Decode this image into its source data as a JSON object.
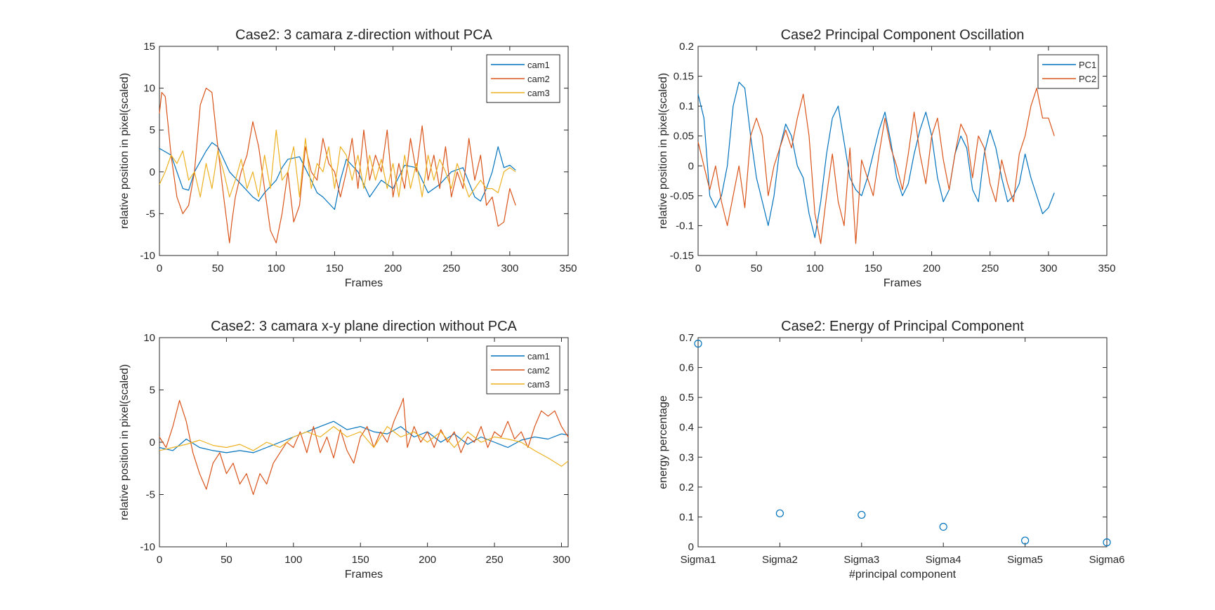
{
  "chart_data": [
    {
      "type": "line",
      "title": "Case2: 3 camara z-direction without PCA",
      "xlabel": "Frames",
      "ylabel": "relative position in pixel(scaled)",
      "xlim": [
        0,
        350
      ],
      "ylim": [
        -10,
        15
      ],
      "xticks": [
        0,
        50,
        100,
        150,
        200,
        250,
        300,
        350
      ],
      "yticks": [
        -10,
        -5,
        0,
        5,
        10,
        15
      ],
      "xtick_labels": [
        "0",
        "50",
        "100",
        "150",
        "200",
        "250",
        "300",
        "350"
      ],
      "ytick_labels": [
        "-10",
        "-5",
        "0",
        "5",
        "10",
        "15"
      ],
      "legend_position": "top-right",
      "series": [
        {
          "name": "cam1",
          "color": "#0072BD",
          "x": [
            0,
            10,
            20,
            25,
            30,
            40,
            45,
            50,
            60,
            70,
            80,
            85,
            90,
            100,
            105,
            110,
            120,
            130,
            135,
            140,
            150,
            155,
            160,
            170,
            180,
            190,
            200,
            210,
            220,
            230,
            240,
            250,
            260,
            270,
            275,
            280,
            285,
            290,
            295,
            300,
            305
          ],
          "y": [
            2.8,
            2,
            -2,
            -2.2,
            0,
            2.5,
            3.5,
            3,
            0,
            -1.5,
            -3,
            -3.5,
            -2.5,
            -1,
            0.5,
            1.5,
            1.8,
            -1,
            -2.5,
            -3,
            -4.5,
            -1,
            1.5,
            0,
            -3,
            -1,
            -2,
            0.8,
            0.5,
            -2.5,
            -1.5,
            0,
            0.5,
            -3,
            -3.5,
            -2,
            0,
            3,
            0.5,
            0.8,
            0.2
          ]
        },
        {
          "name": "cam2",
          "color": "#D95319",
          "x": [
            0,
            2,
            5,
            10,
            15,
            20,
            25,
            30,
            35,
            40,
            45,
            50,
            55,
            60,
            62,
            65,
            70,
            75,
            80,
            85,
            90,
            95,
            100,
            105,
            110,
            115,
            120,
            125,
            130,
            135,
            140,
            145,
            150,
            155,
            160,
            165,
            170,
            175,
            180,
            185,
            190,
            195,
            200,
            205,
            210,
            215,
            220,
            225,
            230,
            235,
            240,
            245,
            250,
            255,
            260,
            265,
            270,
            275,
            280,
            285,
            290,
            295,
            300,
            305
          ],
          "y": [
            7,
            9.5,
            9,
            2,
            -3,
            -5,
            -4,
            0,
            8,
            10,
            9.5,
            3,
            -3,
            -8.5,
            -6,
            -3,
            0,
            2,
            6,
            3,
            -2,
            -7,
            -8.5,
            -5,
            0,
            -6,
            -4,
            3,
            0,
            -1,
            4,
            1,
            0,
            -3,
            0,
            4,
            -2,
            5,
            -1,
            2,
            0,
            5,
            -3,
            1,
            -2,
            4,
            0,
            5.5,
            -1,
            2,
            -2,
            3,
            -3,
            0,
            -2,
            4,
            -1,
            2,
            -4,
            -3,
            -6.5,
            -6,
            -2,
            -4
          ]
        },
        {
          "name": "cam3",
          "color": "#EDB120",
          "x": [
            0,
            5,
            10,
            15,
            20,
            25,
            30,
            35,
            40,
            45,
            50,
            55,
            60,
            65,
            70,
            75,
            80,
            85,
            90,
            95,
            100,
            105,
            110,
            115,
            120,
            125,
            130,
            135,
            140,
            145,
            150,
            155,
            160,
            165,
            170,
            175,
            180,
            185,
            190,
            195,
            200,
            205,
            210,
            215,
            220,
            225,
            230,
            235,
            240,
            245,
            250,
            255,
            260,
            265,
            270,
            275,
            280,
            285,
            290,
            295,
            300,
            305
          ],
          "y": [
            -1.5,
            0,
            2,
            1,
            2.5,
            -1,
            0,
            -3,
            1,
            -2,
            2.5,
            0,
            -3,
            -1,
            1.5,
            -2,
            0,
            -3,
            2,
            -2,
            5,
            -1,
            0,
            3,
            -3,
            4,
            -2,
            1,
            0,
            3,
            -2,
            3,
            2,
            -1,
            2,
            -2,
            2,
            -1,
            1.5,
            -2,
            1,
            -3,
            2,
            -2,
            1,
            -3,
            2,
            -1,
            1.5,
            0,
            -2,
            1,
            -1,
            -3,
            -2,
            -1,
            -2,
            -2,
            -2.5,
            0,
            0.5,
            0
          ]
        }
      ]
    },
    {
      "type": "line",
      "title": "Case2 Principal Component Oscillation",
      "xlabel": "Frames",
      "ylabel": "relative position in pixel(scaled)",
      "xlim": [
        0,
        350
      ],
      "ylim": [
        -0.15,
        0.2
      ],
      "xticks": [
        0,
        50,
        100,
        150,
        200,
        250,
        300,
        350
      ],
      "yticks": [
        -0.15,
        -0.1,
        -0.05,
        0,
        0.05,
        0.1,
        0.15,
        0.2
      ],
      "xtick_labels": [
        "0",
        "50",
        "100",
        "150",
        "200",
        "250",
        "300",
        "350"
      ],
      "ytick_labels": [
        "-0.15",
        "-0.1",
        "-0.05",
        "0",
        "0.05",
        "0.1",
        "0.15",
        "0.2"
      ],
      "legend_position": "top-right",
      "series": [
        {
          "name": "PC1",
          "color": "#0072BD",
          "x": [
            0,
            5,
            10,
            15,
            20,
            25,
            30,
            35,
            40,
            45,
            50,
            55,
            60,
            65,
            70,
            75,
            80,
            85,
            90,
            95,
            100,
            105,
            110,
            115,
            120,
            125,
            130,
            135,
            140,
            145,
            150,
            155,
            160,
            165,
            170,
            175,
            180,
            185,
            190,
            195,
            200,
            205,
            210,
            215,
            220,
            225,
            230,
            235,
            240,
            245,
            250,
            255,
            260,
            265,
            270,
            275,
            280,
            285,
            290,
            295,
            300,
            305
          ],
          "y": [
            0.12,
            0.08,
            -0.05,
            -0.07,
            -0.05,
            0,
            0.1,
            0.14,
            0.13,
            0.05,
            -0.02,
            -0.06,
            -0.1,
            -0.05,
            0.03,
            0.07,
            0.05,
            0,
            -0.02,
            -0.08,
            -0.12,
            -0.06,
            0.02,
            0.08,
            0.1,
            0.04,
            -0.02,
            -0.04,
            -0.05,
            -0.02,
            0.02,
            0.06,
            0.09,
            0.04,
            -0.02,
            -0.05,
            -0.03,
            0.02,
            0.06,
            0.09,
            0.05,
            -0.02,
            -0.06,
            -0.04,
            0.02,
            0.05,
            0.03,
            -0.04,
            -0.06,
            0.02,
            0.06,
            0.03,
            -0.02,
            -0.06,
            -0.05,
            -0.03,
            0.02,
            -0.02,
            -0.05,
            -0.08,
            -0.07,
            -0.045
          ]
        },
        {
          "name": "PC2",
          "color": "#D95319",
          "x": [
            0,
            5,
            10,
            15,
            20,
            25,
            30,
            35,
            40,
            45,
            50,
            55,
            60,
            65,
            70,
            75,
            80,
            85,
            90,
            95,
            100,
            105,
            110,
            115,
            120,
            125,
            130,
            135,
            140,
            145,
            150,
            155,
            160,
            165,
            170,
            175,
            180,
            185,
            190,
            195,
            200,
            205,
            210,
            215,
            220,
            225,
            230,
            235,
            240,
            245,
            250,
            255,
            260,
            265,
            270,
            275,
            280,
            285,
            290,
            295,
            300,
            305
          ],
          "y": [
            0.04,
            0,
            -0.04,
            0,
            -0.06,
            -0.1,
            -0.05,
            0,
            -0.07,
            0.05,
            0.08,
            0.05,
            -0.05,
            0,
            0.03,
            0.06,
            0.03,
            0.08,
            0.12,
            0.05,
            -0.08,
            -0.13,
            -0.05,
            0.02,
            -0.06,
            -0.1,
            0.03,
            -0.13,
            0.01,
            -0.02,
            -0.05,
            0.02,
            0.08,
            0.03,
            0,
            -0.04,
            0.02,
            0.09,
            0.02,
            -0.03,
            0.05,
            0.08,
            0.01,
            -0.04,
            0.02,
            0.07,
            0.05,
            -0.02,
            0.05,
            0.03,
            -0.03,
            -0.06,
            0.01,
            -0.03,
            -0.06,
            0.02,
            0.05,
            0.1,
            0.13,
            0.08,
            0.08,
            0.05
          ]
        }
      ]
    },
    {
      "type": "line",
      "title": "Case2: 3 camara x-y plane direction without PCA",
      "xlabel": "Frames",
      "ylabel": "relative position in pixel(scaled)",
      "xlim": [
        0,
        305
      ],
      "ylim": [
        -10,
        10
      ],
      "xticks": [
        0,
        50,
        100,
        150,
        200,
        250,
        300
      ],
      "yticks": [
        -10,
        -5,
        0,
        5,
        10
      ],
      "xtick_labels": [
        "0",
        "50",
        "100",
        "150",
        "200",
        "250",
        "300"
      ],
      "ytick_labels": [
        "-10",
        "-5",
        "0",
        "5",
        "10"
      ],
      "legend_position": "top-right",
      "series": [
        {
          "name": "cam1",
          "color": "#0072BD",
          "x": [
            0,
            10,
            20,
            30,
            40,
            50,
            60,
            70,
            80,
            90,
            100,
            110,
            120,
            130,
            140,
            150,
            160,
            170,
            180,
            190,
            200,
            210,
            220,
            230,
            240,
            250,
            260,
            270,
            280,
            290,
            300,
            305
          ],
          "y": [
            -0.5,
            -0.8,
            0.3,
            -0.5,
            -0.8,
            -1,
            -0.8,
            -1,
            -0.5,
            0,
            0.5,
            1,
            1.5,
            2,
            1.2,
            1.5,
            1,
            0.8,
            1.5,
            0.5,
            1,
            0,
            0.8,
            -0.2,
            0.5,
            0,
            -0.5,
            0.2,
            0.5,
            0.3,
            0.8,
            0.7
          ]
        },
        {
          "name": "cam2",
          "color": "#D95319",
          "x": [
            0,
            5,
            10,
            15,
            20,
            25,
            30,
            35,
            40,
            45,
            50,
            55,
            60,
            65,
            70,
            75,
            80,
            85,
            90,
            95,
            100,
            105,
            110,
            115,
            120,
            125,
            130,
            135,
            140,
            145,
            150,
            155,
            160,
            165,
            170,
            175,
            180,
            182,
            185,
            190,
            195,
            200,
            205,
            210,
            215,
            220,
            225,
            230,
            235,
            240,
            245,
            250,
            255,
            260,
            265,
            270,
            275,
            280,
            285,
            290,
            295,
            300,
            305
          ],
          "y": [
            0.5,
            -0.5,
            1.5,
            4,
            2,
            -1,
            -3,
            -4.5,
            -2,
            -1,
            -3,
            -2,
            -4,
            -3,
            -5,
            -3,
            -4,
            -2,
            -1,
            0,
            -0.5,
            1,
            -1,
            1.5,
            -1,
            0.5,
            -1.5,
            1.2,
            -0.8,
            -2,
            0.5,
            1.5,
            -0.5,
            1,
            0,
            2,
            3.5,
            4.2,
            -0.5,
            1.5,
            0,
            1,
            -0.5,
            1.2,
            0,
            1,
            -1,
            0.5,
            0,
            1.5,
            -0.5,
            1,
            0.5,
            2,
            0.3,
            1,
            -0.5,
            1.5,
            3,
            2.5,
            3,
            1.5,
            0.5
          ]
        },
        {
          "name": "cam3",
          "color": "#EDB120",
          "x": [
            0,
            10,
            20,
            30,
            40,
            50,
            60,
            70,
            80,
            90,
            100,
            110,
            120,
            130,
            140,
            150,
            160,
            170,
            180,
            190,
            200,
            210,
            220,
            230,
            240,
            250,
            260,
            270,
            280,
            290,
            300,
            305
          ],
          "y": [
            -0.8,
            -0.5,
            -0.2,
            0.2,
            -0.3,
            -0.5,
            -0.2,
            -0.8,
            0,
            -0.5,
            0.5,
            1,
            0.5,
            1.5,
            0.5,
            1,
            -0.5,
            1.5,
            0.5,
            1,
            0,
            1,
            -0.5,
            1,
            0,
            0.5,
            0.3,
            0,
            -0.8,
            -1.5,
            -2.3,
            -1.8
          ]
        }
      ]
    },
    {
      "type": "scatter",
      "title": "Case2: Energy of Principal Component",
      "xlabel": "#principal component",
      "ylabel": "energy percentage",
      "ylim": [
        0,
        0.7
      ],
      "yticks": [
        0,
        0.1,
        0.2,
        0.3,
        0.4,
        0.5,
        0.6,
        0.7
      ],
      "ytick_labels": [
        "0",
        "0.1",
        "0.2",
        "0.3",
        "0.4",
        "0.5",
        "0.6",
        "0.7"
      ],
      "categories": [
        "Sigma1",
        "Sigma2",
        "Sigma3",
        "Sigma4",
        "Sigma5",
        "Sigma6"
      ],
      "series": [
        {
          "color": "#0072BD",
          "values": [
            0.68,
            0.112,
            0.107,
            0.067,
            0.021,
            0.015
          ]
        }
      ]
    }
  ]
}
